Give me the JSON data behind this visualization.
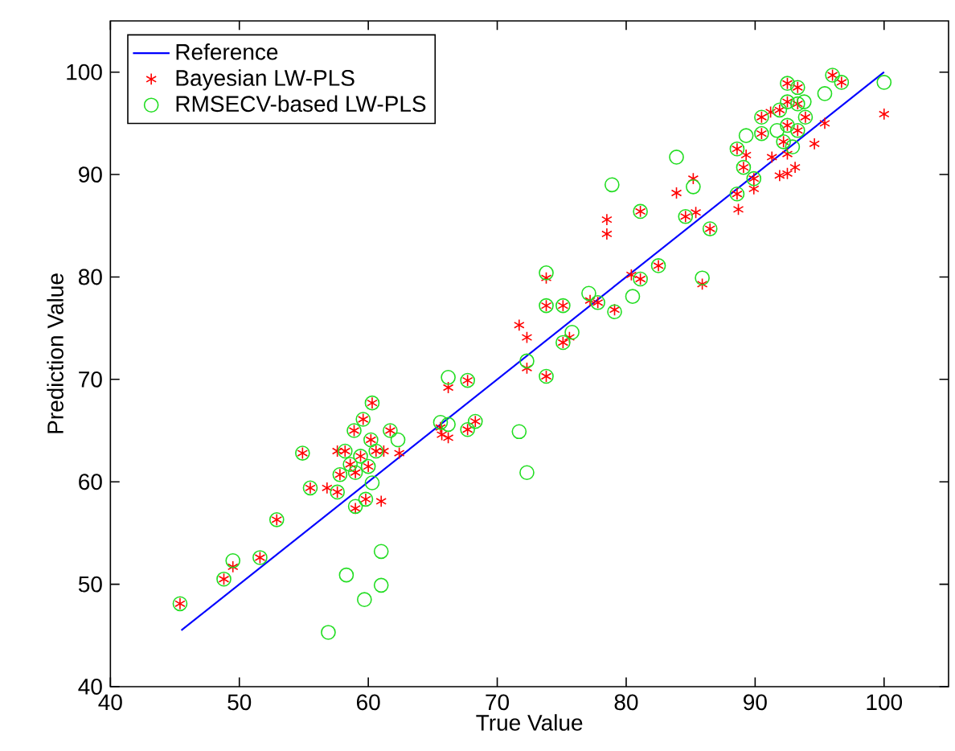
{
  "chart_data": {
    "type": "scatter",
    "xlabel": "True Value",
    "ylabel": "Prediction Value",
    "xlim": [
      40,
      105
    ],
    "ylim": [
      40,
      105
    ],
    "xticks": [
      40,
      50,
      60,
      70,
      80,
      90,
      100
    ],
    "yticks": [
      40,
      50,
      60,
      70,
      80,
      90,
      100
    ],
    "grid": false,
    "legend": "top left",
    "series": [
      {
        "name": "Reference",
        "type": "line",
        "color": "#0000ff",
        "marker": "none",
        "line_style": "solid",
        "x": [
          45.5,
          100
        ],
        "values": [
          45.5,
          100
        ]
      },
      {
        "name": "Bayesian LW-PLS",
        "type": "scatter",
        "color": "#ff0000",
        "marker": "cross",
        "x": [
          45.4,
          48.8,
          49.5,
          51.6,
          52.9,
          54.9,
          55.5,
          56.8,
          57.6,
          59.0,
          59.8,
          61.0,
          62.4,
          61.7,
          60.3,
          59.6,
          58.9,
          58.2,
          58.6,
          59.4,
          60.0,
          60.6,
          57.8,
          59.0,
          60.2,
          61.2,
          57.6,
          65.7,
          65.6,
          66.2,
          67.7,
          68.3,
          66.2,
          67.7,
          71.7,
          72.3,
          72.3,
          73.8,
          73.8,
          73.8,
          75.1,
          75.6,
          75.1,
          77.2,
          77.8,
          79.1,
          80.4,
          81.1,
          82.5,
          85.9,
          86.5,
          78.5,
          78.5,
          81.1,
          84.6,
          85.4,
          83.9,
          85.2,
          88.7,
          88.6,
          88.6,
          89.3,
          89.9,
          89.9,
          89.1,
          90.5,
          91.2,
          90.5,
          91.3,
          91.9,
          92.5,
          93.1,
          92.5,
          93.3,
          96.0,
          96.7,
          100,
          94.6,
          95.4,
          91.9,
          92.5,
          93.3,
          92.5,
          93.3,
          93.9,
          92.2,
          92.5
        ],
        "values": [
          48.1,
          50.5,
          51.7,
          52.6,
          56.3,
          62.8,
          59.4,
          59.4,
          59.0,
          57.4,
          58.3,
          58.1,
          62.8,
          65.0,
          67.7,
          66.1,
          65.0,
          63.0,
          61.7,
          62.5,
          61.5,
          63.0,
          60.7,
          60.9,
          64.1,
          63.0,
          63.0,
          64.6,
          65.3,
          64.3,
          65.1,
          65.9,
          69.2,
          69.9,
          75.3,
          74.1,
          71.1,
          70.3,
          79.9,
          77.2,
          77.2,
          74.1,
          73.6,
          77.7,
          77.5,
          76.8,
          80.2,
          79.8,
          81.1,
          79.3,
          84.7,
          85.6,
          84.2,
          86.4,
          85.9,
          86.3,
          88.2,
          89.6,
          86.6,
          88.1,
          92.5,
          91.9,
          89.6,
          88.6,
          90.7,
          95.6,
          96.1,
          94.0,
          91.7,
          89.9,
          90.1,
          90.7,
          98.9,
          98.5,
          99.7,
          99.0,
          95.9,
          93.0,
          95.0,
          96.3,
          97.1,
          96.9,
          94.8,
          94.3,
          95.6,
          93.2,
          92.0
        ]
      },
      {
        "name": "RMSECV-based LW-PLS",
        "type": "scatter",
        "color": "#22dd22",
        "marker": "circle",
        "x": [
          45.4,
          48.8,
          49.5,
          51.6,
          52.9,
          54.9,
          55.5,
          57.6,
          59.0,
          59.8,
          60.3,
          62.3,
          61.7,
          60.3,
          59.6,
          58.9,
          58.2,
          58.6,
          59.4,
          60.0,
          60.6,
          57.8,
          59.0,
          60.2,
          61.0,
          58.3,
          59.7,
          61.0,
          56.9,
          65.6,
          66.2,
          67.7,
          68.3,
          66.2,
          67.7,
          72.3,
          73.8,
          71.7,
          72.3,
          73.8,
          73.8,
          75.1,
          75.8,
          75.1,
          77.1,
          77.8,
          79.1,
          80.5,
          81.1,
          82.5,
          85.9,
          86.5,
          81.1,
          84.6,
          78.9,
          83.9,
          85.2,
          88.6,
          88.6,
          89.3,
          89.9,
          89.1,
          90.5,
          90.5,
          92.5,
          93.3,
          96.0,
          96.7,
          100,
          95.4,
          91.9,
          92.5,
          93.3,
          93.8,
          92.5,
          93.3,
          93.9,
          92.2,
          92.9,
          91.7
        ],
        "values": [
          48.1,
          50.5,
          52.3,
          52.6,
          56.3,
          62.8,
          59.4,
          59.0,
          57.6,
          58.3,
          59.9,
          64.1,
          65.0,
          67.7,
          66.1,
          65.0,
          63.0,
          61.7,
          62.5,
          61.5,
          63.0,
          60.7,
          60.9,
          64.1,
          53.2,
          50.9,
          48.5,
          49.9,
          45.3,
          65.8,
          65.6,
          65.1,
          65.9,
          70.2,
          69.9,
          71.8,
          70.3,
          64.9,
          60.9,
          80.4,
          77.2,
          77.2,
          74.6,
          73.6,
          78.4,
          77.5,
          76.6,
          78.1,
          79.8,
          81.1,
          79.9,
          84.7,
          86.4,
          85.9,
          89.0,
          91.7,
          88.8,
          88.1,
          92.5,
          93.8,
          89.6,
          90.7,
          95.6,
          94.0,
          98.9,
          98.5,
          99.7,
          99.0,
          99.0,
          97.9,
          96.3,
          97.1,
          96.9,
          97.1,
          94.8,
          94.3,
          95.6,
          93.2,
          92.7,
          94.3
        ]
      }
    ]
  }
}
